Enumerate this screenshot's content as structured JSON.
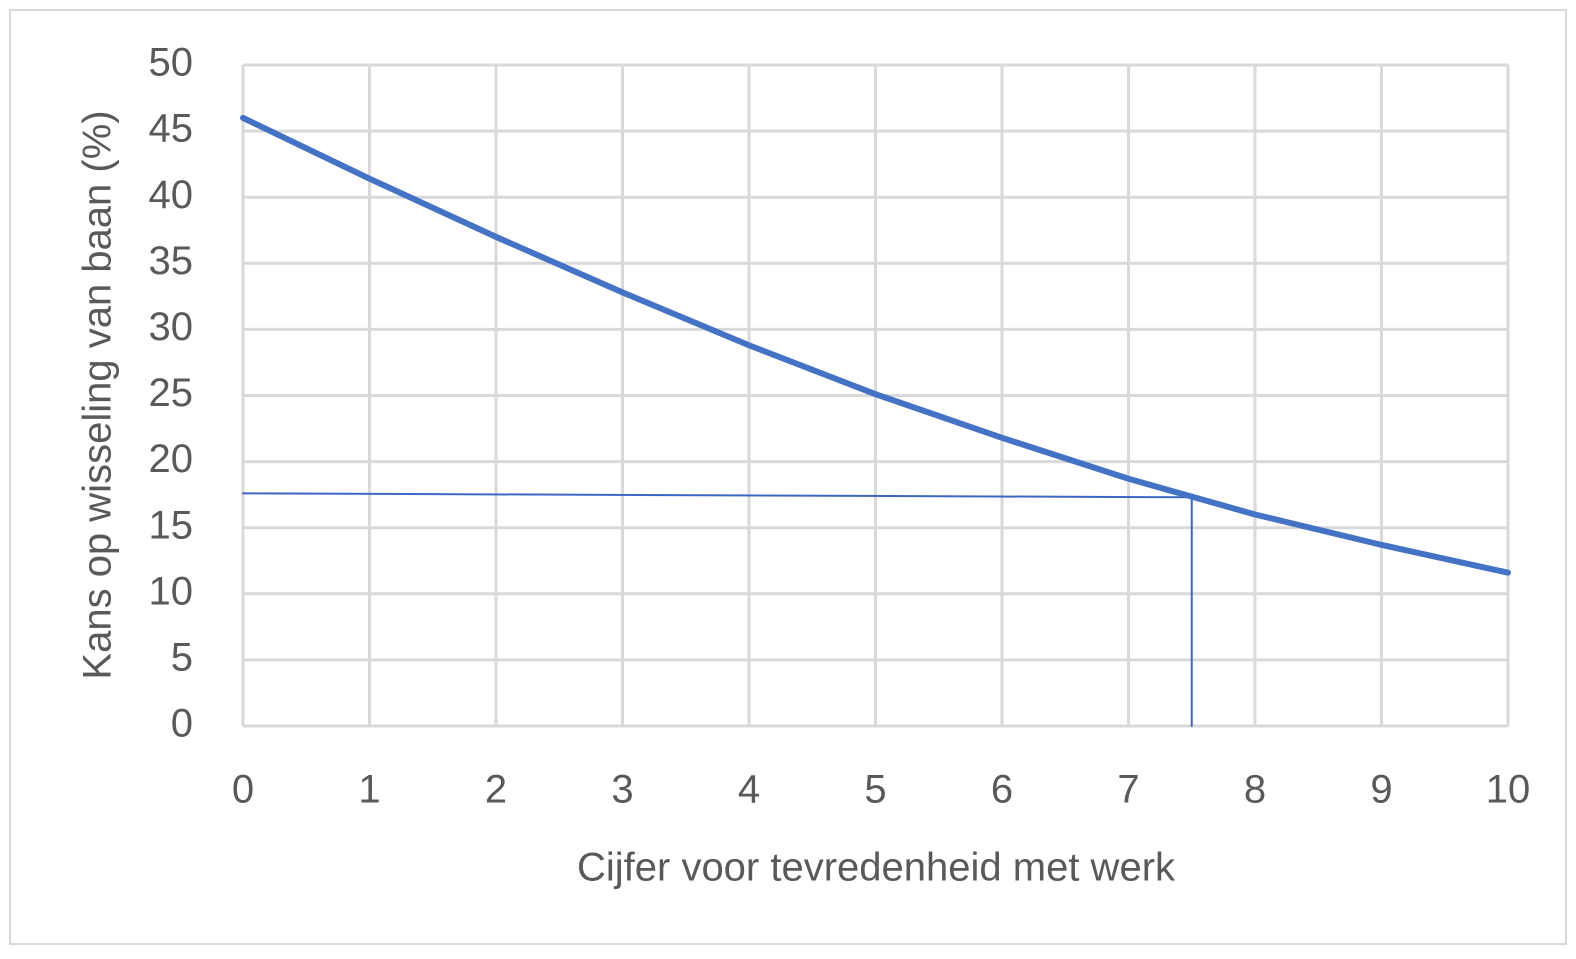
{
  "chart_data": {
    "type": "line",
    "x_label": "Cijfer voor tevredenheid met werk",
    "y_label": "Kans op wisseling van baan (%)",
    "series": [
      {
        "color": "#4472c4",
        "line_width": 6,
        "x": [
          0,
          1,
          2,
          3,
          4,
          5,
          6,
          7,
          8,
          9,
          10
        ],
        "values": [
          46,
          41.4,
          37,
          32.8,
          28.8,
          25.1,
          21.8,
          18.7,
          16,
          13.7,
          11.6
        ]
      },
      {
        "color": "#3d66c4",
        "line_width": 2,
        "x": [
          0,
          7.5,
          7.5
        ],
        "values": [
          17.6,
          17.3,
          0
        ]
      }
    ],
    "xlim": [
      0,
      10
    ],
    "xticks": [
      0,
      1,
      2,
      3,
      4,
      5,
      6,
      7,
      8,
      9,
      10
    ],
    "ylim": [
      0,
      50
    ],
    "yticks": [
      0,
      5,
      10,
      15,
      20,
      25,
      30,
      35,
      40,
      45,
      50
    ],
    "grid": true
  }
}
